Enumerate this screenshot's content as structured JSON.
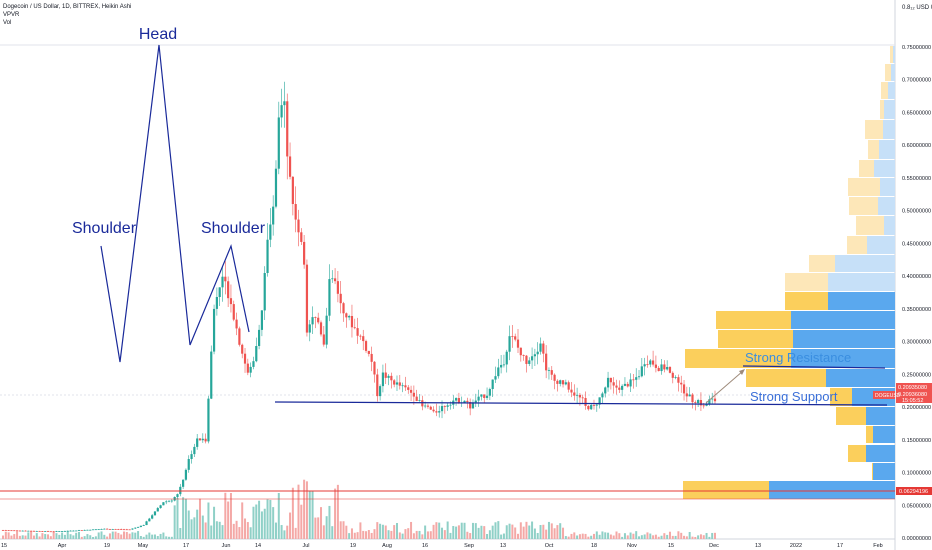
{
  "header": {
    "symbol_line": "Dogecoin / US Dollar, 1D, BITTREX, Heikin Ashi",
    "indicator_1": "VPVR",
    "indicator_2": "Vol"
  },
  "annotations": {
    "head": "Head",
    "shoulder_left": "Shoulder",
    "shoulder_right": "Shoulder",
    "resistance": "Strong Resistance",
    "support": "Strong Support"
  },
  "price_scale": {
    "top_label": "0.8₁₂ USD 00",
    "labels": [
      "0.75000000",
      "0.70000000",
      "0.65000000",
      "0.60000000",
      "0.55000000",
      "0.50000000",
      "0.45000000",
      "0.40000000",
      "0.35000000",
      "0.30000000",
      "0.25000000",
      "0.20000000",
      "0.15000000",
      "0.10000000",
      "0.05000000",
      "0.00000000"
    ],
    "current_price_1": "0.20935080",
    "current_price_2": "0.20936080",
    "countdown": "15:05:52",
    "symbol_tag": "DOGEUSD",
    "red_line_price": "0.06294196"
  },
  "time_scale": {
    "labels": [
      "15",
      "Apr",
      "19",
      "May",
      "17",
      "Jun",
      "14",
      "Jul",
      "19",
      "Aug",
      "16",
      "Sep",
      "13",
      "Oct",
      "18",
      "Nov",
      "15",
      "Dec",
      "13",
      "2022",
      "17",
      "Feb"
    ]
  },
  "colors": {
    "up": "#26a69a",
    "down": "#ef5350",
    "navy": "#1a2a9a",
    "vp_yellow": "#fbcf5c",
    "vp_blue": "#5aa8ee",
    "vp_yellow_light": "#fde7b8",
    "vp_blue_light": "#c6e0f8",
    "red_line": "#e53935",
    "resistance_text": "#3a8ee0",
    "support_text": "#3a6fd8"
  },
  "chart_data": {
    "type": "candlestick",
    "title": "Dogecoin / US Dollar, 1D, BITTREX, Heikin Ashi",
    "y_axis": {
      "min": 0,
      "max": 0.8,
      "unit": "USD"
    },
    "close_path": [
      [
        0,
        0.012
      ],
      [
        18,
        0.01
      ],
      [
        28,
        0.012
      ],
      [
        36,
        0.014
      ],
      [
        45,
        0.013
      ],
      [
        50,
        0.02
      ],
      [
        54,
        0.04
      ],
      [
        57,
        0.055
      ],
      [
        60,
        0.058
      ],
      [
        62,
        0.067
      ],
      [
        64,
        0.09
      ],
      [
        66,
        0.12
      ],
      [
        69,
        0.15
      ],
      [
        72,
        0.15
      ],
      [
        75,
        0.35
      ],
      [
        78,
        0.4
      ],
      [
        81,
        0.36
      ],
      [
        84,
        0.3
      ],
      [
        87,
        0.25
      ],
      [
        89,
        0.27
      ],
      [
        92,
        0.35
      ],
      [
        94,
        0.45
      ],
      [
        96,
        0.5
      ],
      [
        98,
        0.63
      ],
      [
        100,
        0.68
      ],
      [
        101,
        0.59
      ],
      [
        103,
        0.51
      ],
      [
        105,
        0.47
      ],
      [
        107,
        0.42
      ],
      [
        108,
        0.32
      ],
      [
        110,
        0.34
      ],
      [
        112,
        0.33
      ],
      [
        114,
        0.3
      ],
      [
        116,
        0.39
      ],
      [
        118,
        0.39
      ],
      [
        120,
        0.36
      ],
      [
        122,
        0.34
      ],
      [
        125,
        0.32
      ],
      [
        128,
        0.3
      ],
      [
        131,
        0.27
      ],
      [
        133,
        0.22
      ],
      [
        135,
        0.25
      ],
      [
        138,
        0.24
      ],
      [
        142,
        0.23
      ],
      [
        146,
        0.22
      ],
      [
        149,
        0.2
      ],
      [
        151,
        0.2
      ],
      [
        153,
        0.19
      ],
      [
        156,
        0.2
      ],
      [
        160,
        0.21
      ],
      [
        164,
        0.21
      ],
      [
        166,
        0.2
      ],
      [
        168,
        0.21
      ],
      [
        172,
        0.22
      ],
      [
        174,
        0.24
      ],
      [
        176,
        0.26
      ],
      [
        178,
        0.27
      ],
      [
        180,
        0.31
      ],
      [
        182,
        0.3
      ],
      [
        184,
        0.28
      ],
      [
        186,
        0.27
      ],
      [
        188,
        0.28
      ],
      [
        190,
        0.29
      ],
      [
        191,
        0.3
      ],
      [
        193,
        0.26
      ],
      [
        196,
        0.24
      ],
      [
        198,
        0.24
      ],
      [
        201,
        0.23
      ],
      [
        203,
        0.22
      ],
      [
        206,
        0.21
      ],
      [
        207,
        0.2
      ],
      [
        210,
        0.2
      ],
      [
        213,
        0.22
      ],
      [
        215,
        0.24
      ],
      [
        217,
        0.23
      ],
      [
        220,
        0.23
      ],
      [
        224,
        0.24
      ],
      [
        226,
        0.25
      ],
      [
        228,
        0.27
      ],
      [
        230,
        0.27
      ],
      [
        233,
        0.26
      ],
      [
        236,
        0.26
      ],
      [
        238,
        0.24
      ],
      [
        239,
        0.25
      ],
      [
        241,
        0.23
      ],
      [
        243,
        0.22
      ],
      [
        245,
        0.21
      ],
      [
        247,
        0.21
      ],
      [
        249,
        0.2
      ],
      [
        251,
        0.21
      ],
      [
        253,
        0.21
      ]
    ],
    "volume_note": "bars colored by candle direction beneath price",
    "volume_profile_rows_count": 23,
    "annotations": [
      "Head",
      "Shoulder",
      "Shoulder",
      "Strong Resistance",
      "Strong Support"
    ]
  }
}
